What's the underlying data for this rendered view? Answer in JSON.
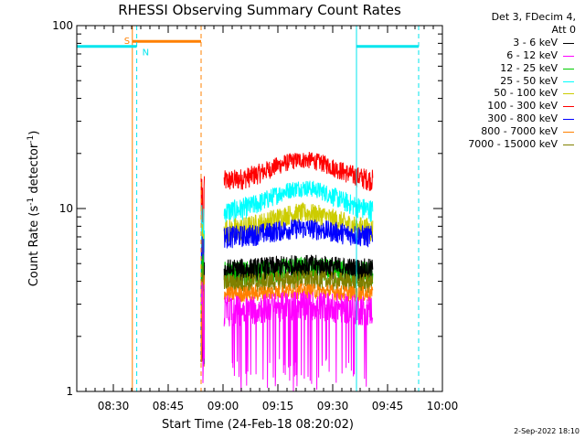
{
  "chart_data": {
    "type": "line",
    "title": "RHESSI Observing Summary Count Rates",
    "xlabel": "Start Time (24-Feb-18 08:20:02)",
    "ylabel": "Count Rate (s",
    "ylabel_sup1": "-1",
    "ylabel_mid": " detector",
    "ylabel_sup2": "-1",
    "ylabel_end": ")",
    "x_unit": "minutes since 08:20:02",
    "xlim": [
      0,
      100
    ],
    "ylim": [
      1,
      100
    ],
    "y_scale": "log",
    "x_ticks": [
      {
        "value": 10,
        "label": "08:30"
      },
      {
        "value": 25,
        "label": "08:45"
      },
      {
        "value": 40,
        "label": "09:00"
      },
      {
        "value": 55,
        "label": "09:15"
      },
      {
        "value": 70,
        "label": "09:30"
      },
      {
        "value": 85,
        "label": "09:45"
      },
      {
        "value": 100,
        "label": "10:00"
      }
    ],
    "y_ticks": [
      {
        "value": 1,
        "label": "1"
      },
      {
        "value": 10,
        "label": "10"
      },
      {
        "value": 100,
        "label": "100"
      }
    ],
    "legend": {
      "header": [
        "Det 3, FDecim 4,",
        "Att 0"
      ],
      "placement": "top-right"
    },
    "series": [
      {
        "name": "3 - 6 keV",
        "color": "#000000",
        "base": 4.6,
        "scale": 0.7,
        "bump": 0.3
      },
      {
        "name": "6 - 12 keV",
        "color": "#ff00ff",
        "base": 2.8,
        "scale": 0.55,
        "bump": 0.2
      },
      {
        "name": "12 - 25 keV",
        "color": "#00cc00",
        "base": 4.4,
        "scale": 0.7,
        "bump": 0.3
      },
      {
        "name": "25 - 50 keV",
        "color": "#00ffff",
        "base": 9.5,
        "scale": 1.4,
        "bump": 3.5
      },
      {
        "name": "50 - 100 keV",
        "color": "#cccc00",
        "base": 7.5,
        "scale": 1.2,
        "bump": 2.0
      },
      {
        "name": "100 - 300 keV",
        "color": "#ff0000",
        "base": 14.0,
        "scale": 2.0,
        "bump": 4.5
      },
      {
        "name": "300 - 800 keV",
        "color": "#0000ff",
        "base": 7.0,
        "scale": 1.0,
        "bump": 0.8
      },
      {
        "name": "800 - 7000 keV",
        "color": "#ff8000",
        "base": 3.4,
        "scale": 0.35,
        "bump": 0.15
      },
      {
        "name": "7000 - 15000 keV",
        "color": "#808000",
        "base": 3.9,
        "scale": 0.5,
        "bump": 0.2
      }
    ],
    "data_segments": [
      [
        34,
        35
      ],
      [
        40.3,
        81
      ]
    ],
    "peak_time": 62,
    "markers": [
      {
        "type": "saa",
        "label": "S",
        "color": "#ff8000",
        "x_start": 15.2,
        "x_end": 34.0,
        "y_level": 82
      },
      {
        "type": "night",
        "label": "N",
        "color": "#00e5ee",
        "x_start": 0,
        "x_end": 16.4,
        "y_level": 77
      },
      {
        "type": "night",
        "label": "",
        "color": "#00e5ee",
        "x_start": 76.5,
        "x_end": 93.5,
        "y_level": 77
      }
    ]
  },
  "footer": {
    "timestamp": "2-Sep-2022 18:10"
  }
}
